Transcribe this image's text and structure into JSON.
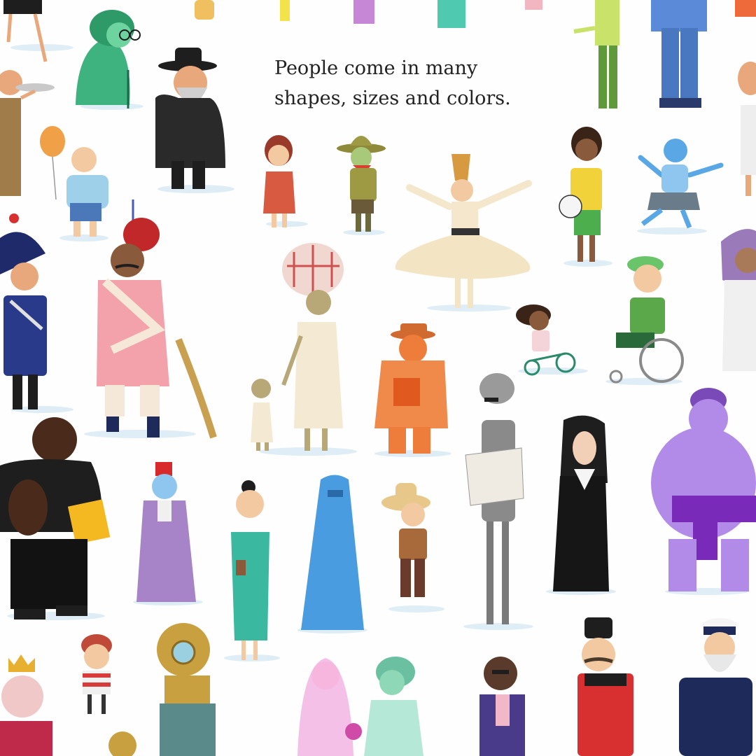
{
  "caption": {
    "line1": "People come in many",
    "line2": "shapes, sizes and colors."
  },
  "palette": {
    "background": "#fefefe",
    "shadow": "#cfe3f2",
    "skin_tan": "#e8a87c",
    "skin_brown": "#8a5a3c",
    "green": "#3fb37f",
    "pink": "#f2a0a8",
    "purple": "#b28be8",
    "blue": "#4a90d9",
    "orange": "#ee7d3b",
    "black": "#1e1e1e"
  }
}
